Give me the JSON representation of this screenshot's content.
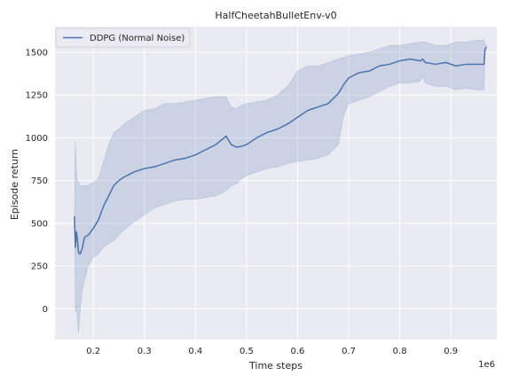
{
  "chart_data": {
    "type": "line",
    "title": "HalfCheetahBulletEnv-v0",
    "xlabel": "Time steps",
    "ylabel": "Episode return",
    "x_offset_label": "1e6",
    "xlim": [
      0.125,
      0.99
    ],
    "ylim": [
      -180,
      1650
    ],
    "x_ticks": [
      0.2,
      0.3,
      0.4,
      0.5,
      0.6,
      0.7,
      0.8,
      0.9
    ],
    "x_tick_labels": [
      "0.2",
      "0.3",
      "0.4",
      "0.5",
      "0.6",
      "0.7",
      "0.8",
      "0.9"
    ],
    "y_ticks": [
      0,
      250,
      500,
      750,
      1000,
      1250,
      1500
    ],
    "y_tick_labels": [
      "0",
      "250",
      "500",
      "750",
      "1000",
      "1250",
      "1500"
    ],
    "grid": true,
    "legend_position": "top-left",
    "colors": {
      "line": "#4c72b0",
      "band": "#4c72b0",
      "background": "#eaeaf2",
      "grid": "#ffffff"
    },
    "series": [
      {
        "name": "DDPG (Normal Noise)",
        "x": [
          0.163,
          0.165,
          0.167,
          0.169,
          0.171,
          0.174,
          0.178,
          0.183,
          0.19,
          0.2,
          0.21,
          0.22,
          0.23,
          0.24,
          0.25,
          0.26,
          0.28,
          0.3,
          0.32,
          0.34,
          0.36,
          0.38,
          0.4,
          0.42,
          0.44,
          0.46,
          0.47,
          0.48,
          0.49,
          0.5,
          0.52,
          0.54,
          0.56,
          0.58,
          0.6,
          0.62,
          0.64,
          0.66,
          0.68,
          0.69,
          0.7,
          0.72,
          0.74,
          0.76,
          0.78,
          0.8,
          0.82,
          0.84,
          0.845,
          0.85,
          0.87,
          0.89,
          0.91,
          0.93,
          0.95,
          0.965,
          0.967,
          0.97
        ],
        "y": [
          540,
          360,
          450,
          400,
          330,
          320,
          350,
          420,
          430,
          470,
          520,
          600,
          660,
          720,
          750,
          770,
          800,
          820,
          830,
          850,
          870,
          880,
          900,
          930,
          960,
          1010,
          960,
          945,
          950,
          960,
          1000,
          1030,
          1050,
          1080,
          1120,
          1160,
          1180,
          1200,
          1260,
          1310,
          1350,
          1380,
          1390,
          1420,
          1430,
          1450,
          1460,
          1450,
          1460,
          1440,
          1430,
          1440,
          1420,
          1430,
          1430,
          1430,
          1520,
          1530
        ],
        "upper": [
          540,
          980,
          800,
          740,
          740,
          720,
          720,
          720,
          720,
          740,
          760,
          860,
          960,
          1030,
          1050,
          1080,
          1120,
          1160,
          1170,
          1200,
          1200,
          1210,
          1220,
          1230,
          1240,
          1240,
          1180,
          1170,
          1190,
          1200,
          1210,
          1220,
          1250,
          1300,
          1390,
          1420,
          1420,
          1440,
          1460,
          1470,
          1480,
          1490,
          1500,
          1520,
          1540,
          1540,
          1550,
          1560,
          1560,
          1560,
          1540,
          1540,
          1560,
          1560,
          1570,
          1570,
          1550,
          1540
        ],
        "lower": [
          540,
          -20,
          20,
          -60,
          -140,
          -20,
          100,
          170,
          250,
          300,
          320,
          360,
          380,
          400,
          430,
          460,
          510,
          550,
          590,
          610,
          630,
          640,
          640,
          650,
          660,
          690,
          720,
          730,
          760,
          780,
          800,
          820,
          830,
          850,
          860,
          870,
          880,
          900,
          960,
          1130,
          1200,
          1220,
          1240,
          1270,
          1300,
          1320,
          1320,
          1330,
          1360,
          1320,
          1300,
          1300,
          1280,
          1290,
          1280,
          1280,
          1500,
          1530
        ]
      }
    ]
  }
}
